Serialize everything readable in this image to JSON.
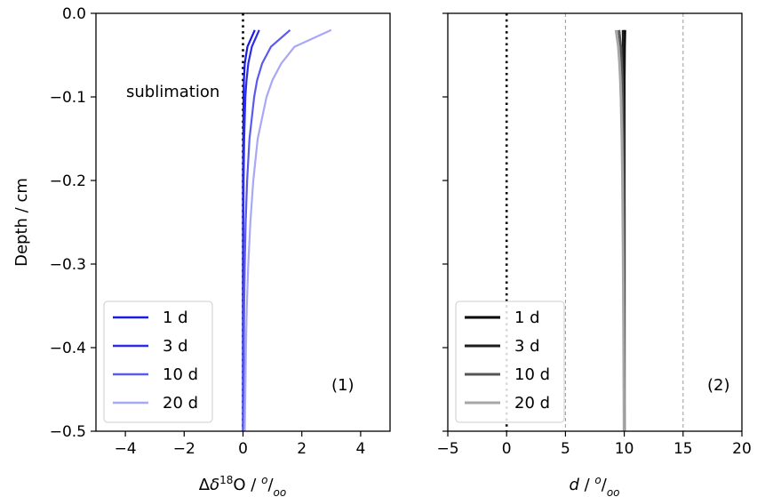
{
  "chart_data": [
    {
      "type": "line",
      "panel_label": "(1)",
      "xlabel": "Δδ¹⁸O / ᵒ/ₒₒ",
      "ylabel": "Depth / cm",
      "xlim": [
        -5,
        5
      ],
      "ylim": [
        -0.5,
        0.0
      ],
      "xticks": [
        -4,
        -2,
        0,
        2,
        4
      ],
      "yticks": [
        0.0,
        -0.1,
        -0.2,
        -0.3,
        -0.4,
        -0.5
      ],
      "xtick_labels": [
        "−4",
        "−2",
        "0",
        "2",
        "4"
      ],
      "ytick_labels": [
        "0.0",
        "−0.1",
        "−0.2",
        "−0.3",
        "−0.4",
        "−0.5"
      ],
      "annotation": "sublimation",
      "reference_line_x": 0,
      "legend_position": "lower-left",
      "grid": false,
      "depths": [
        -0.02,
        -0.04,
        -0.06,
        -0.08,
        -0.1,
        -0.15,
        -0.2,
        -0.25,
        -0.3,
        -0.35,
        -0.4,
        -0.45,
        -0.5
      ],
      "series": [
        {
          "name": "1 d",
          "color": "#1a1ae6",
          "x": [
            0.4,
            0.15,
            0.06,
            0.03,
            0.02,
            0.01,
            0.0,
            0.0,
            0.0,
            0.0,
            0.0,
            0.0,
            0.0
          ]
        },
        {
          "name": "3 d",
          "color": "#2d2de8",
          "x": [
            0.55,
            0.3,
            0.18,
            0.12,
            0.08,
            0.04,
            0.02,
            0.01,
            0.0,
            0.0,
            0.0,
            0.0,
            0.0
          ]
        },
        {
          "name": "10 d",
          "color": "#5a5aee",
          "x": [
            1.6,
            0.95,
            0.65,
            0.48,
            0.38,
            0.22,
            0.14,
            0.09,
            0.06,
            0.04,
            0.03,
            0.02,
            0.01
          ]
        },
        {
          "name": "20 d",
          "color": "#a8a8f6",
          "x": [
            3.0,
            1.75,
            1.3,
            1.0,
            0.8,
            0.5,
            0.35,
            0.25,
            0.18,
            0.13,
            0.1,
            0.08,
            0.06
          ]
        }
      ]
    },
    {
      "type": "line",
      "panel_label": "(2)",
      "xlabel": "d  / ᵒ/ₒₒ",
      "ylabel": "",
      "xlim": [
        -5,
        20
      ],
      "ylim": [
        -0.5,
        0.0
      ],
      "xticks": [
        -5,
        0,
        5,
        10,
        15,
        20
      ],
      "xtick_labels": [
        "−5",
        "0",
        "5",
        "10",
        "15",
        "20"
      ],
      "reference_line_x": 0,
      "guide_lines_x": [
        5,
        15
      ],
      "legend_position": "lower-left",
      "grid": false,
      "depths": [
        -0.02,
        -0.04,
        -0.06,
        -0.08,
        -0.1,
        -0.15,
        -0.2,
        -0.25,
        -0.3,
        -0.35,
        -0.4,
        -0.45,
        -0.5
      ],
      "series": [
        {
          "name": "1 d",
          "color": "#000000",
          "x": [
            10.05,
            10.02,
            10.01,
            10.0,
            10.0,
            10.0,
            10.0,
            10.0,
            10.0,
            10.0,
            10.0,
            10.0,
            10.0
          ]
        },
        {
          "name": "3 d",
          "color": "#1c1c1c",
          "x": [
            9.9,
            9.92,
            9.95,
            9.96,
            9.97,
            9.98,
            9.99,
            10.0,
            10.0,
            10.0,
            10.0,
            10.0,
            10.0
          ]
        },
        {
          "name": "10 d",
          "color": "#555555",
          "x": [
            9.55,
            9.7,
            9.78,
            9.83,
            9.86,
            9.9,
            9.93,
            9.95,
            9.96,
            9.97,
            9.98,
            9.99,
            10.0
          ]
        },
        {
          "name": "20 d",
          "color": "#a6a6a6",
          "x": [
            9.3,
            9.5,
            9.6,
            9.67,
            9.72,
            9.8,
            9.85,
            9.88,
            9.91,
            9.93,
            9.95,
            9.97,
            9.98
          ]
        }
      ]
    }
  ]
}
